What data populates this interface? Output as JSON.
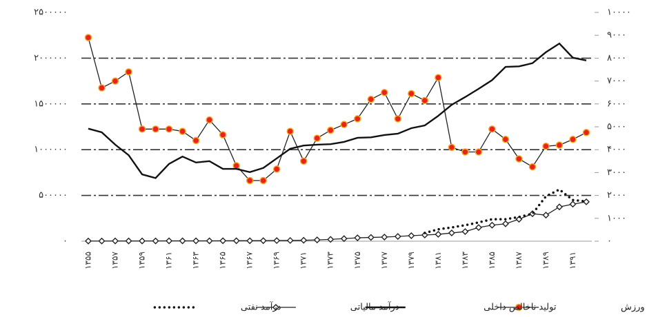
{
  "chart_data": {
    "type": "line",
    "categories": [
      "۱۳۵۵",
      null,
      "۱۳۵۷",
      null,
      "۱۳۵۹",
      null,
      "۱۳۶۱",
      null,
      "۱۳۶۳",
      null,
      "۱۳۶۵",
      null,
      "۱۳۶۷",
      null,
      "۱۳۶۹",
      null,
      "۱۳۷۱",
      null,
      "۱۳۷۳",
      null,
      "۱۳۷۵",
      null,
      "۱۳۷۷",
      null,
      "۱۳۷۹",
      null,
      "۱۳۸۱",
      null,
      "۱۳۸۳",
      null,
      "۱۳۸۵",
      null,
      "۱۳۸۷",
      null,
      "۱۳۸۹",
      null,
      "۱۳۹۱",
      null
    ],
    "series": [
      {
        "name": "ارزش افزوده ورزش",
        "color": "#222222",
        "marker": "circle",
        "marker_color": "#e8231f",
        "axis": "y2",
        "values": [
          8900,
          6700,
          7000,
          7400,
          4900,
          4900,
          4900,
          4800,
          4400,
          5300,
          4650,
          3300,
          2650,
          2650,
          3150,
          4800,
          3500,
          4500,
          4850,
          5100,
          5350,
          6200,
          6500,
          5350,
          6450,
          6150,
          7150,
          4100,
          3900,
          3900,
          4900,
          4450,
          3600,
          3250,
          4150,
          4200,
          4450,
          4750
        ]
      },
      {
        "name": "تولید ناخالص داخلی",
        "color": "#111111",
        "marker": null,
        "axis": "y",
        "values": [
          1230000,
          1190000,
          1055000,
          940000,
          730000,
          690000,
          845000,
          925000,
          860000,
          875000,
          790000,
          790000,
          755000,
          800000,
          905000,
          1010000,
          1045000,
          1055000,
          1060000,
          1085000,
          1130000,
          1135000,
          1160000,
          1175000,
          1235000,
          1265000,
          1370000,
          1490000,
          1575000,
          1665000,
          1760000,
          1905000,
          1910000,
          1945000,
          2065000,
          2160000,
          2005000,
          1975000
        ]
      },
      {
        "name": "درآمد مالیاتی",
        "color": "#222222",
        "marker": "diamond",
        "axis": "y",
        "values": [
          2000,
          2000,
          2500,
          2500,
          3000,
          3000,
          3500,
          3500,
          4000,
          4000,
          4500,
          5000,
          5000,
          6000,
          7000,
          8000,
          10000,
          14000,
          20000,
          28000,
          37000,
          41000,
          45000,
          52000,
          60000,
          68000,
          75000,
          90000,
          105000,
          150000,
          175000,
          190000,
          240000,
          300000,
          285000,
          375000,
          405000,
          430000
        ]
      },
      {
        "name": "درآمد نفتی",
        "color": "#111111",
        "marker": "dots",
        "axis": "y",
        "values": [
          null,
          null,
          null,
          null,
          null,
          null,
          null,
          null,
          null,
          null,
          null,
          null,
          null,
          null,
          null,
          null,
          null,
          null,
          null,
          null,
          null,
          null,
          null,
          null,
          null,
          90000,
          130000,
          150000,
          175000,
          205000,
          240000,
          240000,
          265000,
          300000,
          490000,
          565000,
          450000,
          435000
        ]
      }
    ],
    "ylim": [
      0,
      2500000
    ],
    "yticks": [
      {
        "value": 0,
        "label": "۰"
      },
      {
        "value": 500000,
        "label": "۵۰۰۰۰۰"
      },
      {
        "value": 1000000,
        "label": "۱۰۰۰۰۰۰"
      },
      {
        "value": 1500000,
        "label": "۱۵۰۰۰۰۰"
      },
      {
        "value": 2000000,
        "label": "۲۰۰۰۰۰۰"
      },
      {
        "value": 2500000,
        "label": "۲۵۰۰۰۰۰"
      }
    ],
    "y2lim": [
      0,
      10000
    ],
    "y2ticks": [
      {
        "value": 0,
        "label": "۰"
      },
      {
        "value": 1000,
        "label": "۱۰۰۰"
      },
      {
        "value": 2000,
        "label": "۲۰۰۰"
      },
      {
        "value": 3000,
        "label": "۳۰۰۰"
      },
      {
        "value": 4000,
        "label": "۴۰۰۰"
      },
      {
        "value": 5000,
        "label": "۵۰۰۰"
      },
      {
        "value": 6000,
        "label": "۶۰۰۰"
      },
      {
        "value": 7000,
        "label": "۷۰۰۰"
      },
      {
        "value": 8000,
        "label": "۸۰۰۰"
      },
      {
        "value": 9000,
        "label": "۹۰۰۰"
      },
      {
        "value": 10000,
        "label": "۱۰۰۰۰"
      }
    ],
    "grid": true,
    "legend": "bottom"
  }
}
